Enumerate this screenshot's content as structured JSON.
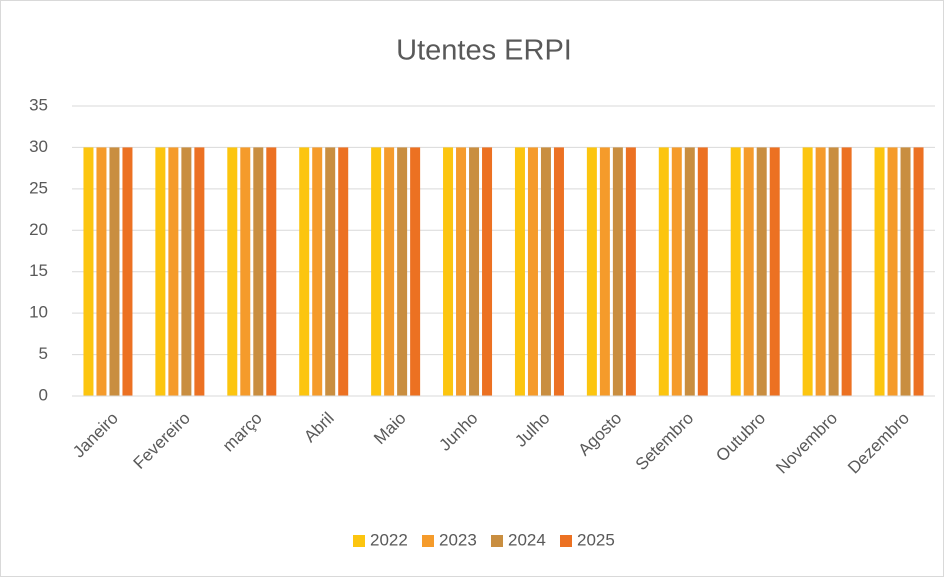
{
  "chart_data": {
    "type": "bar",
    "title": "Utentes ERPI",
    "categories": [
      "Janeiro",
      "Fevereiro",
      "março",
      "Abril",
      "Maio",
      "Junho",
      "Julho",
      "Agosto",
      "Setembro",
      "Outubro",
      "Novembro",
      "Dezembro"
    ],
    "series": [
      {
        "name": "2022",
        "color": "#fcc50f",
        "values": [
          30,
          30,
          30,
          30,
          30,
          30,
          30,
          30,
          30,
          30,
          30,
          30
        ]
      },
      {
        "name": "2023",
        "color": "#f59b2b",
        "values": [
          30,
          30,
          30,
          30,
          30,
          30,
          30,
          30,
          30,
          30,
          30,
          30
        ]
      },
      {
        "name": "2024",
        "color": "#c98e40",
        "values": [
          30,
          30,
          30,
          30,
          30,
          30,
          30,
          30,
          30,
          30,
          30,
          30
        ]
      },
      {
        "name": "2025",
        "color": "#ec7122",
        "values": [
          30,
          30,
          30,
          30,
          30,
          30,
          30,
          30,
          30,
          30,
          30,
          30
        ]
      }
    ],
    "ylim": [
      0,
      35
    ],
    "yticks": [
      0,
      5,
      10,
      15,
      20,
      25,
      30,
      35
    ],
    "grid": true,
    "legend": "bottom"
  }
}
